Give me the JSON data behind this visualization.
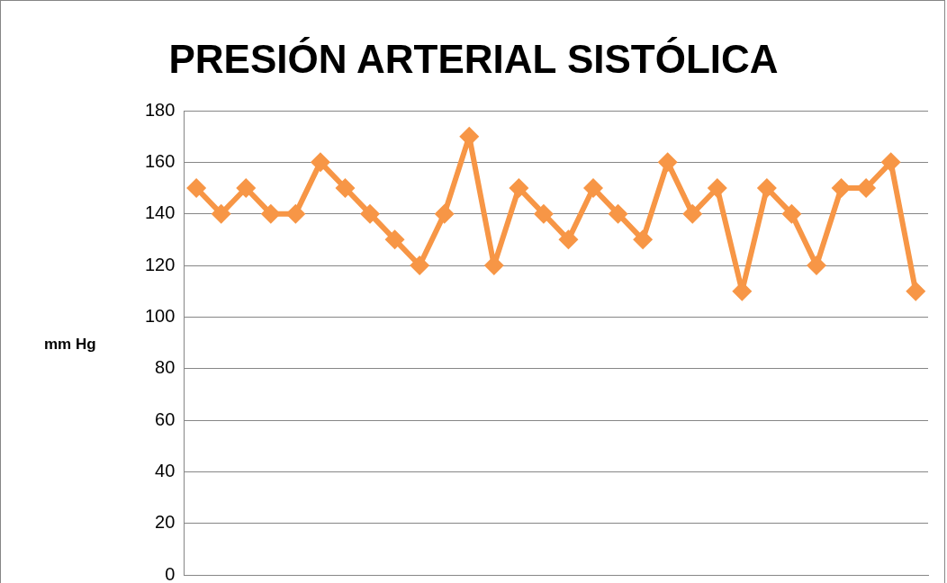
{
  "chart_data": {
    "type": "line",
    "title": "PRESIÓN ARTERIAL SISTÓLICA",
    "ylabel": "mm Hg",
    "categories": [
      null,
      null,
      null,
      null,
      null,
      null,
      null,
      null,
      null,
      null,
      null,
      null,
      null,
      null,
      null,
      null,
      null,
      null,
      null,
      null,
      null,
      null,
      null,
      null,
      null,
      null,
      null,
      null,
      null,
      null
    ],
    "series": [
      {
        "color": "#f79646",
        "values": [
          150,
          140,
          150,
          140,
          140,
          160,
          150,
          140,
          130,
          120,
          140,
          170,
          120,
          150,
          140,
          130,
          150,
          140,
          130,
          160,
          140,
          150,
          110,
          150,
          140,
          120,
          150,
          150,
          160,
          110
        ]
      }
    ],
    "ylim": [
      0,
      180
    ],
    "yticks": [
      0,
      20,
      40,
      60,
      80,
      100,
      120,
      140,
      160,
      180
    ],
    "grid": "y",
    "legend": false,
    "marker": "diamond",
    "line_style": "solid",
    "tick_labels": "y"
  }
}
